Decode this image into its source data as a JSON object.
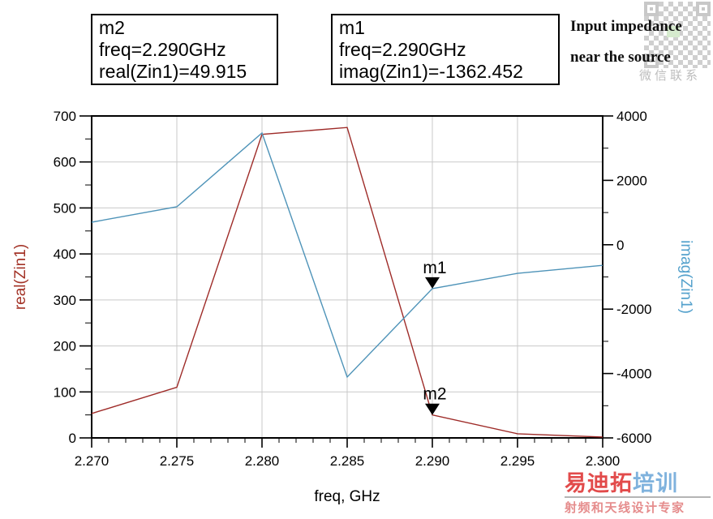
{
  "marker_boxes": [
    {
      "title": "m2",
      "freq_line": "freq=2.290GHz",
      "value_line": "real(Zin1)=49.915"
    },
    {
      "title": "m1",
      "freq_line": "freq=2.290GHz",
      "value_line": "imag(Zin1)=-1362.452"
    }
  ],
  "annotation": {
    "line1": "Input impedance",
    "line2": "near the source"
  },
  "qr": {
    "caption": "微信联系"
  },
  "watermark": {
    "brand_red": "易迪拓",
    "brand_blue": "培训",
    "tagline": "射频和天线设计专家",
    "red": "#E24B4B",
    "blue": "#7FB2DD",
    "tagline_color": "#E58C8C"
  },
  "chart_data": {
    "type": "line",
    "xlabel": "freq, GHz",
    "x": [
      2.27,
      2.275,
      2.28,
      2.285,
      2.29,
      2.295,
      2.3
    ],
    "x_tick_labels": [
      "2.270",
      "2.275",
      "2.280",
      "2.285",
      "2.290",
      "2.295",
      "2.300"
    ],
    "x_minor_per_major": 5,
    "xlim": [
      2.27,
      2.3
    ],
    "grid": true,
    "left_axis": {
      "label": "real(Zin1)",
      "color": "#A33327",
      "min": 0,
      "max": 700,
      "major_ticks": [
        0,
        100,
        200,
        300,
        400,
        500,
        600,
        700
      ],
      "minor_step": 50
    },
    "right_axis": {
      "label": "imag(Zin1)",
      "color": "#54A1CC",
      "min": -6000,
      "max": 4000,
      "major_ticks": [
        -6000,
        -4000,
        -2000,
        0,
        2000,
        4000
      ],
      "minor_step": 1000
    },
    "series": [
      {
        "name": "real(Zin1)",
        "axis": "left",
        "color": "#9E2B28",
        "values": [
          53,
          110,
          660,
          675,
          49.915,
          9,
          2
        ]
      },
      {
        "name": "imag(Zin1)",
        "axis": "right",
        "color": "#4E93B8",
        "values": [
          700,
          1180,
          3470,
          -4110,
          -1362.452,
          -890,
          -640
        ]
      }
    ],
    "markers": [
      {
        "label": "m1",
        "series": 1,
        "x": 2.29,
        "value": -1362.452
      },
      {
        "label": "m2",
        "series": 0,
        "x": 2.29,
        "value": 49.915
      }
    ]
  }
}
